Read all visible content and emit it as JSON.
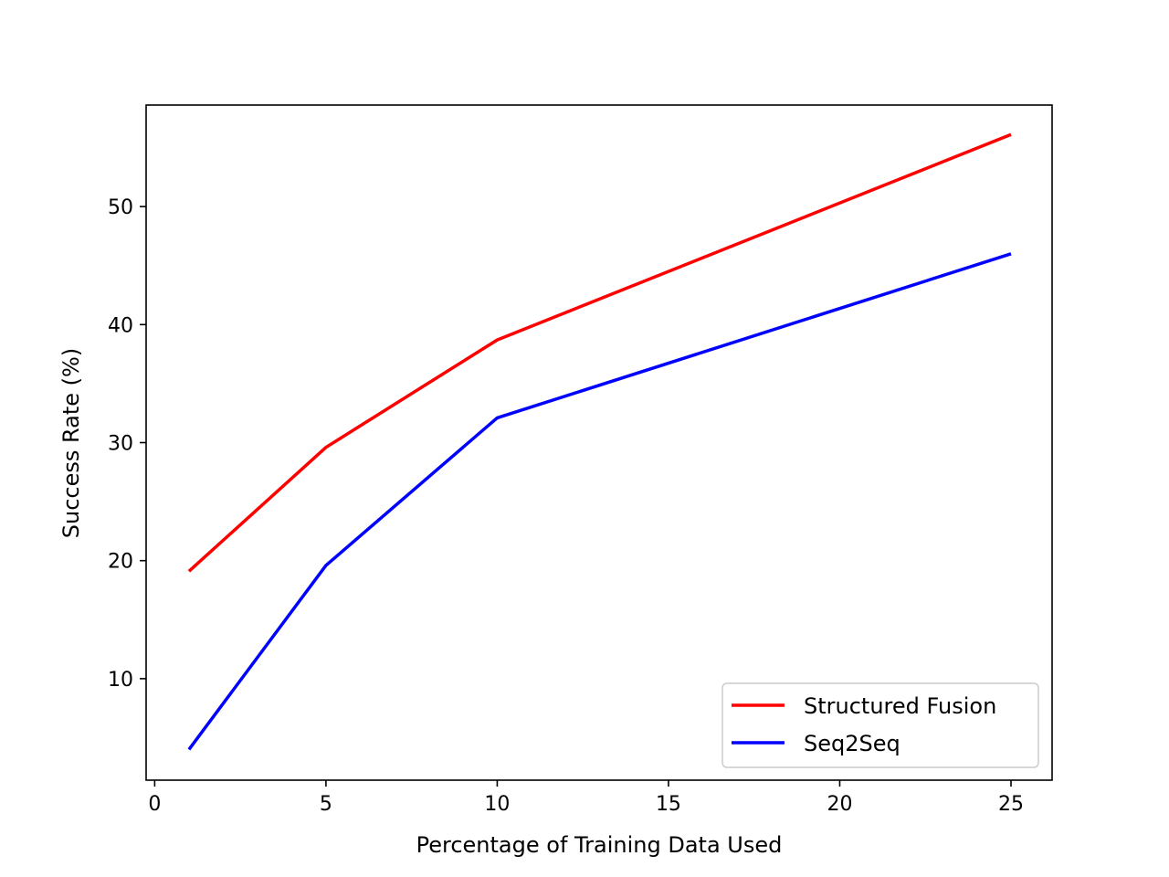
{
  "chart_data": {
    "type": "line",
    "xlabel": "Percentage of Training Data Used",
    "ylabel": "Success Rate (%)",
    "xlim": [
      -0.25,
      26.2
    ],
    "ylim": [
      1.4,
      58.6
    ],
    "xticks": [
      0,
      5,
      10,
      15,
      20,
      25
    ],
    "yticks": [
      10,
      20,
      30,
      40,
      50
    ],
    "grid": false,
    "legend_position": "lower-right",
    "series": [
      {
        "name": "Structured Fusion",
        "color": "#ff0000",
        "x": [
          1,
          5,
          10,
          25
        ],
        "y": [
          19.1,
          29.6,
          38.7,
          56.1
        ]
      },
      {
        "name": "Seq2Seq",
        "color": "#0000ff",
        "x": [
          1,
          5,
          10,
          25
        ],
        "y": [
          4.0,
          19.6,
          32.1,
          46.0
        ]
      }
    ]
  }
}
